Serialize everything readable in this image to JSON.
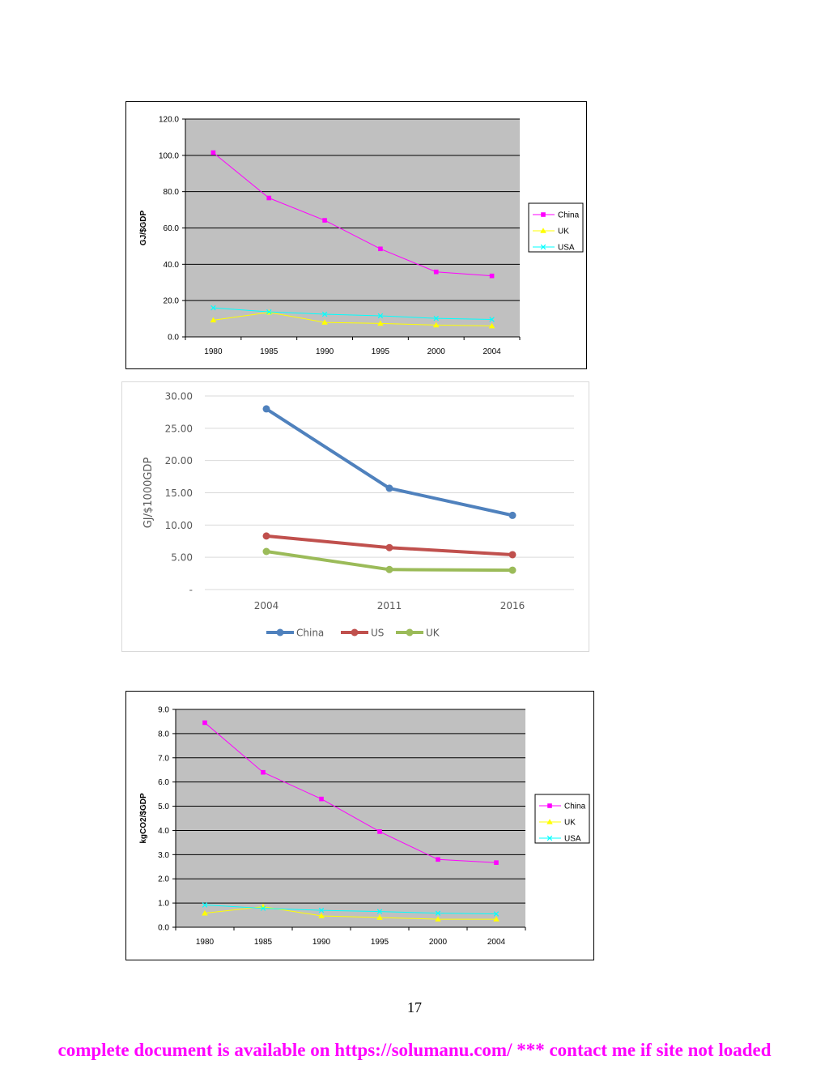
{
  "chart_data": [
    {
      "type": "line",
      "title": "",
      "xlabel": "",
      "ylabel": "GJ/$GDP",
      "categories": [
        "1980",
        "1985",
        "1990",
        "1995",
        "2000",
        "2004"
      ],
      "ylim": [
        0,
        120
      ],
      "yticks": [
        "0.0",
        "20.0",
        "40.0",
        "60.0",
        "80.0",
        "100.0",
        "120.0"
      ],
      "grid": true,
      "plot_background": "#c0c0c0",
      "legend_position": "right",
      "series": [
        {
          "name": "China",
          "color": "#ff00ff",
          "marker": "square",
          "values": [
            101.5,
            76.5,
            64.2,
            48.5,
            35.8,
            33.6
          ]
        },
        {
          "name": "UK",
          "color": "#ffff00",
          "marker": "triangle",
          "values": [
            9.2,
            13.5,
            8.0,
            7.4,
            6.5,
            6.0
          ]
        },
        {
          "name": "USA",
          "color": "#00ffff",
          "marker": "x",
          "values": [
            16.0,
            13.8,
            12.5,
            11.6,
            10.2,
            9.6
          ]
        }
      ]
    },
    {
      "type": "line",
      "title": "",
      "xlabel": "",
      "ylabel": "GJ/$1000GDP",
      "categories": [
        "2004",
        "2011",
        "2016"
      ],
      "ylim": [
        0,
        30
      ],
      "yticks": [
        "-",
        "5.00",
        "10.00",
        "15.00",
        "20.00",
        "25.00",
        "30.00"
      ],
      "grid": true,
      "legend_position": "bottom",
      "series": [
        {
          "name": "China",
          "color": "#4f81bd",
          "marker": "circle",
          "values": [
            28.0,
            15.7,
            11.5
          ]
        },
        {
          "name": "US",
          "color": "#c0504d",
          "marker": "circle",
          "values": [
            8.3,
            6.5,
            5.4
          ]
        },
        {
          "name": "UK",
          "color": "#9bbb59",
          "marker": "circle",
          "values": [
            5.9,
            3.1,
            3.0
          ]
        }
      ]
    },
    {
      "type": "line",
      "title": "",
      "xlabel": "",
      "ylabel": "kgCO2/$GDP",
      "categories": [
        "1980",
        "1985",
        "1990",
        "1995",
        "2000",
        "2004"
      ],
      "ylim": [
        0,
        9
      ],
      "yticks": [
        "0.0",
        "1.0",
        "2.0",
        "3.0",
        "4.0",
        "5.0",
        "6.0",
        "7.0",
        "8.0",
        "9.0"
      ],
      "grid": true,
      "plot_background": "#c0c0c0",
      "legend_position": "right",
      "series": [
        {
          "name": "China",
          "color": "#ff00ff",
          "marker": "square",
          "values": [
            8.45,
            6.4,
            5.3,
            3.95,
            2.8,
            2.67
          ]
        },
        {
          "name": "UK",
          "color": "#ffff00",
          "marker": "triangle",
          "values": [
            0.58,
            0.85,
            0.47,
            0.4,
            0.33,
            0.33
          ]
        },
        {
          "name": "USA",
          "color": "#00ffff",
          "marker": "x",
          "values": [
            0.92,
            0.78,
            0.7,
            0.65,
            0.58,
            0.55
          ]
        }
      ]
    }
  ],
  "page_number": "17",
  "footer_note": "complete document is available on https://solumanu.com/ *** contact me if site not loaded"
}
